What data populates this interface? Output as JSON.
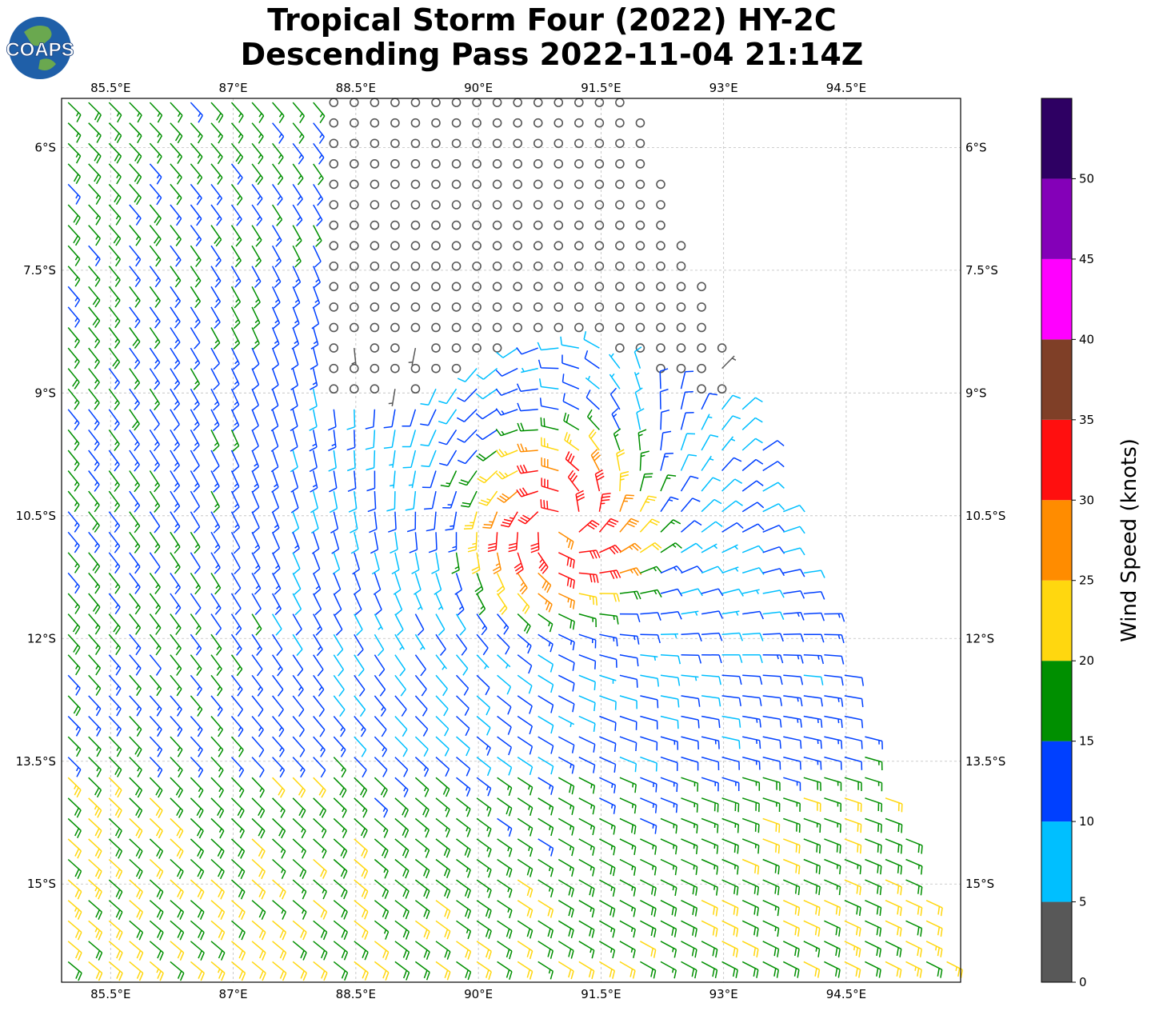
{
  "title": {
    "line1": "Tropical Storm Four (2022) HY-2C",
    "line2": "Descending Pass 2022-11-04 21:14Z"
  },
  "logo": {
    "text": "COAPS",
    "ocean_color": "#1f5fa8",
    "land_color": "#6aa84f"
  },
  "chart_data": {
    "type": "wind-barb map",
    "title": "Tropical Storm Four (2022) HY-2C Descending Pass 2022-11-04 21:14Z",
    "x_axis": {
      "lim": [
        84.9,
        95.9
      ],
      "ticks": [
        85.5,
        87,
        88.5,
        90,
        91.5,
        93,
        94.5
      ],
      "tick_labels": [
        "85.5°E",
        "87°E",
        "88.5°E",
        "90°E",
        "91.5°E",
        "93°E",
        "94.5°E"
      ]
    },
    "y_axis": {
      "lim": [
        -5.4,
        -16.2
      ],
      "ticks": [
        -6,
        -7.5,
        -9,
        -10.5,
        -12,
        -13.5,
        -15
      ],
      "tick_labels": [
        "6°S",
        "7.5°S",
        "9°S",
        "10.5°S",
        "12°S",
        "13.5°S",
        "15°S"
      ]
    },
    "grid": true,
    "storm_center": {
      "lon": 91.0,
      "lat": -10.6
    },
    "swath": {
      "east_edge_top": {
        "lon": 91.9,
        "lat": -5.4
      },
      "east_edge_bottom": {
        "lon": 95.9,
        "lat": -16.2
      },
      "spacing_deg": 0.25
    },
    "colorbar": {
      "label": "Wind Speed (knots)",
      "bounds": [
        0,
        5,
        10,
        15,
        20,
        25,
        30,
        35,
        40,
        45,
        50,
        55
      ],
      "tick_values": [
        0,
        5,
        10,
        15,
        20,
        25,
        30,
        35,
        40,
        45,
        50
      ],
      "tick_labels": [
        "0",
        "5",
        "10",
        "15",
        "20",
        "25",
        "30",
        "35",
        "40",
        "45",
        "50"
      ],
      "colors": [
        "#585858",
        "#00bfff",
        "#0040ff",
        "#008f00",
        "#ffd70f",
        "#ff8c00",
        "#ff0f0f",
        "#7f3f27",
        "#ff00ff",
        "#8400b8",
        "#2e0063"
      ]
    }
  }
}
